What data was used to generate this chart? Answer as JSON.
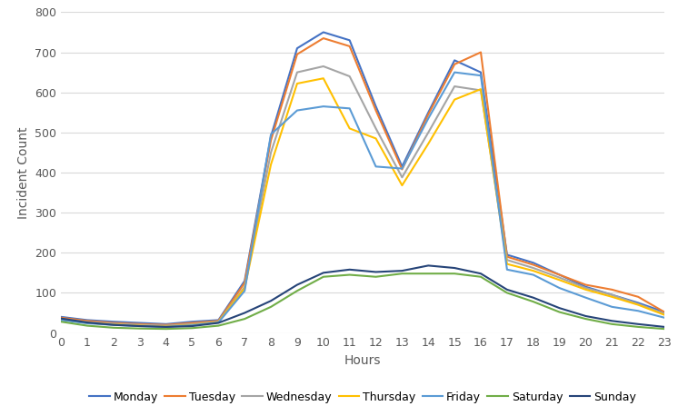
{
  "hours": [
    0,
    1,
    2,
    3,
    4,
    5,
    6,
    7,
    8,
    9,
    10,
    11,
    12,
    13,
    14,
    15,
    16,
    17,
    18,
    19,
    20,
    21,
    22,
    23
  ],
  "series": {
    "Monday": [
      40,
      32,
      28,
      25,
      22,
      28,
      32,
      130,
      490,
      710,
      750,
      730,
      565,
      415,
      550,
      680,
      650,
      195,
      175,
      145,
      115,
      95,
      75,
      52
    ],
    "Tuesday": [
      38,
      30,
      25,
      22,
      20,
      25,
      30,
      125,
      480,
      695,
      735,
      715,
      555,
      408,
      545,
      670,
      700,
      190,
      170,
      145,
      120,
      108,
      90,
      52
    ],
    "Wednesday": [
      35,
      27,
      23,
      20,
      18,
      22,
      28,
      115,
      450,
      650,
      665,
      640,
      510,
      388,
      500,
      615,
      605,
      182,
      162,
      138,
      112,
      95,
      72,
      48
    ],
    "Thursday": [
      34,
      25,
      21,
      18,
      16,
      20,
      27,
      112,
      420,
      622,
      635,
      510,
      485,
      368,
      472,
      582,
      608,
      172,
      155,
      132,
      108,
      90,
      70,
      45
    ],
    "Friday": [
      32,
      24,
      20,
      17,
      15,
      19,
      26,
      105,
      495,
      555,
      565,
      560,
      415,
      410,
      535,
      650,
      642,
      158,
      145,
      112,
      88,
      65,
      55,
      38
    ],
    "Saturday": [
      28,
      18,
      13,
      11,
      10,
      12,
      18,
      35,
      65,
      105,
      140,
      145,
      140,
      148,
      148,
      148,
      140,
      100,
      78,
      52,
      35,
      22,
      15,
      10
    ],
    "Sunday": [
      36,
      26,
      20,
      17,
      15,
      17,
      25,
      50,
      80,
      120,
      150,
      158,
      152,
      155,
      168,
      162,
      148,
      108,
      88,
      62,
      42,
      30,
      22,
      15
    ]
  },
  "colors": {
    "Monday": "#4472C4",
    "Tuesday": "#ED7D31",
    "Wednesday": "#A5A5A5",
    "Thursday": "#FFC000",
    "Friday": "#5B9BD5",
    "Saturday": "#70AD47",
    "Sunday": "#264478"
  },
  "xlabel": "Hours",
  "ylabel": "Incident Count",
  "ylim": [
    0,
    800
  ],
  "yticks": [
    0,
    100,
    200,
    300,
    400,
    500,
    600,
    700,
    800
  ],
  "xticks": [
    0,
    1,
    2,
    3,
    4,
    5,
    6,
    7,
    8,
    9,
    10,
    11,
    12,
    13,
    14,
    15,
    16,
    17,
    18,
    19,
    20,
    21,
    22,
    23
  ],
  "legend_order": [
    "Monday",
    "Tuesday",
    "Wednesday",
    "Thursday",
    "Friday",
    "Saturday",
    "Sunday"
  ],
  "background_color": "#ffffff",
  "grid_color": "#d9d9d9"
}
